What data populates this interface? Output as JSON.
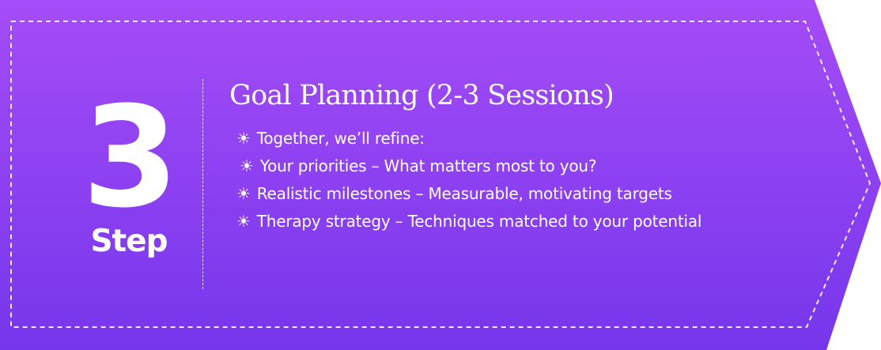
{
  "step": {
    "number": "3",
    "label": "Step"
  },
  "title": "Goal Planning (2-3 Sessions)",
  "bullet_icon": "sun-icon",
  "items": [
    {
      "text": "Together, we’ll refine:"
    },
    {
      "text": "Your priorities – What matters most to you?"
    },
    {
      "text": "Realistic milestones – Measurable, motivating targets"
    },
    {
      "text": "Therapy strategy – Techniques matched to your potential"
    }
  ],
  "colors": {
    "gradient_top": "#a54cf7",
    "gradient_bottom": "#7636ec",
    "text": "#ffffff",
    "dashed_border": "#ffffff"
  }
}
